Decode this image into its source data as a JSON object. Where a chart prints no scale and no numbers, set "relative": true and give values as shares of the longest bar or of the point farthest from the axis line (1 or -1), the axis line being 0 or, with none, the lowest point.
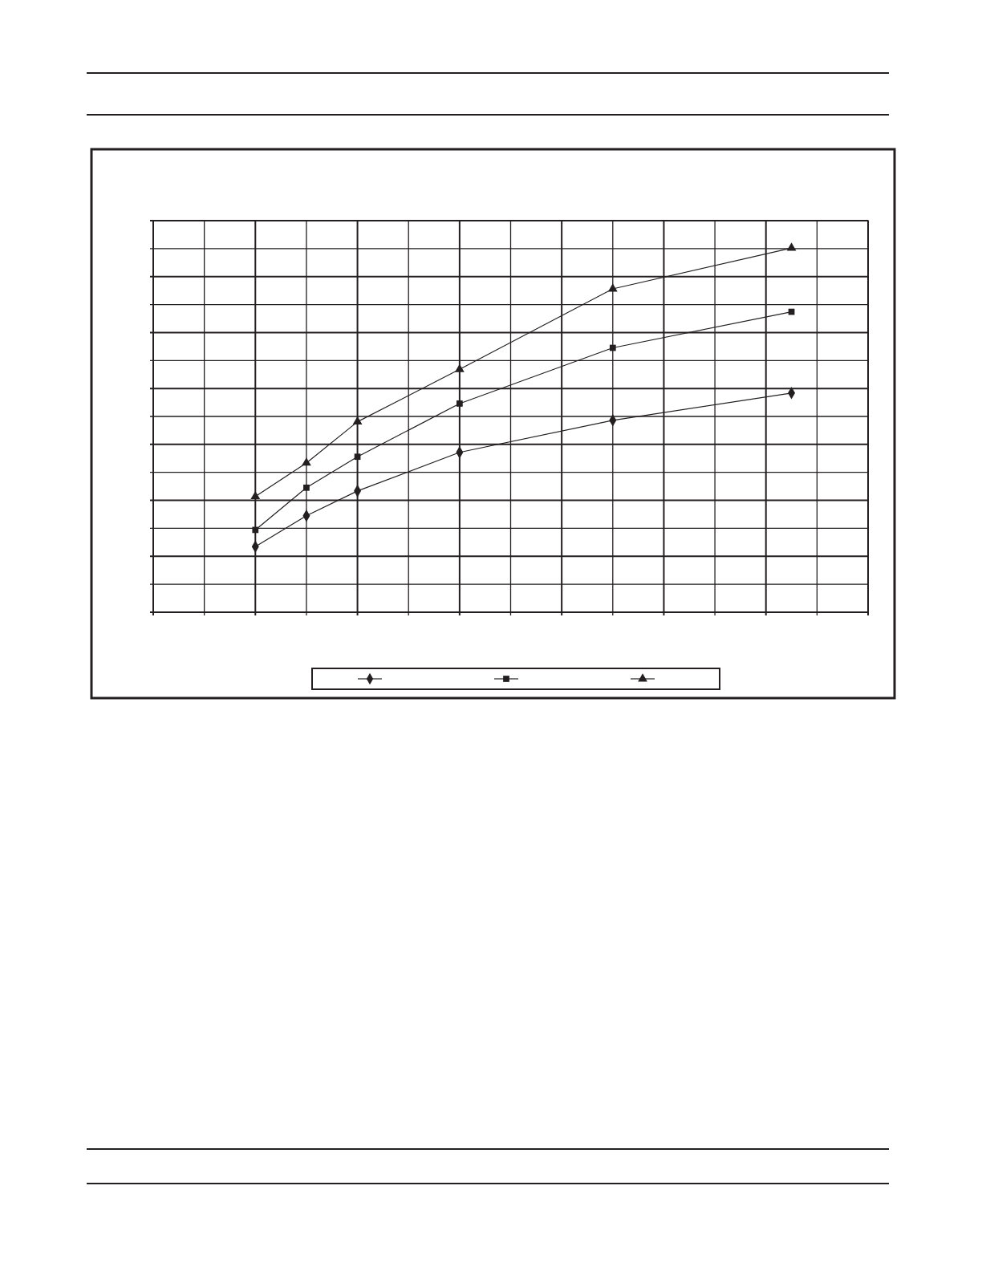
{
  "chart_data": {
    "type": "line",
    "relative": true,
    "grid": true,
    "line_style": "solid",
    "categories": [
      null,
      null,
      null,
      null,
      null,
      null,
      null,
      null,
      null,
      null,
      null,
      null,
      null,
      null,
      null,
      null,
      null,
      null,
      null,
      null,
      null,
      null,
      null,
      null,
      null,
      null,
      null,
      null,
      null
    ],
    "series": [
      {
        "color": "#231f20",
        "marker": "diamond",
        "values": [
          null,
          null,
          null,
          null,
          0.18,
          null,
          0.265,
          null,
          0.333,
          null,
          null,
          null,
          0.439,
          null,
          null,
          null,
          null,
          null,
          0.527,
          null,
          null,
          null,
          null,
          null,
          null,
          0.602,
          null,
          null,
          null
        ]
      },
      {
        "color": "#231f20",
        "marker": "square",
        "values": [
          null,
          null,
          null,
          null,
          0.226,
          null,
          0.342,
          null,
          0.427,
          null,
          null,
          null,
          0.573,
          null,
          null,
          null,
          null,
          null,
          0.726,
          null,
          null,
          null,
          null,
          null,
          null,
          0.825,
          null,
          null,
          null
        ]
      },
      {
        "color": "#231f20",
        "marker": "triangle",
        "values": [
          null,
          null,
          null,
          null,
          0.318,
          null,
          0.41,
          null,
          0.523,
          null,
          null,
          null,
          0.667,
          null,
          null,
          null,
          null,
          null,
          0.888,
          null,
          null,
          null,
          null,
          null,
          null,
          1,
          null,
          null,
          null
        ]
      }
    ]
  }
}
